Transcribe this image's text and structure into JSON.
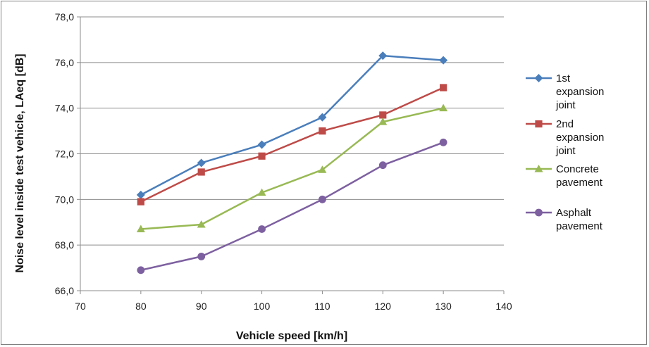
{
  "chart_data": {
    "type": "line",
    "xlabel": "Vehicle speed [km/h]",
    "ylabel": "Noise level inside test vehicle, LAeq [dB]",
    "xlim": [
      70,
      140
    ],
    "ylim": [
      66.0,
      78.0
    ],
    "x_ticks": [
      "70",
      "80",
      "90",
      "100",
      "110",
      "120",
      "130",
      "140"
    ],
    "y_ticks": [
      "66,0",
      "68,0",
      "70,0",
      "72,0",
      "74,0",
      "76,0",
      "78,0"
    ],
    "grid": "horizontal",
    "legend_position": "right",
    "x": [
      80,
      90,
      100,
      110,
      120,
      130
    ],
    "series": [
      {
        "name_lines": [
          "1st",
          "expansion",
          "joint"
        ],
        "marker": "diamond",
        "color": "#4a7ebb",
        "values": [
          70.2,
          71.6,
          72.4,
          73.6,
          76.3,
          76.1
        ]
      },
      {
        "name_lines": [
          "2nd",
          "expansion",
          "joint"
        ],
        "marker": "square",
        "color": "#be4b48",
        "values": [
          69.9,
          71.2,
          71.9,
          73.0,
          73.7,
          74.9
        ]
      },
      {
        "name_lines": [
          "Concrete",
          "pavement"
        ],
        "marker": "triangle",
        "color": "#98b954",
        "values": [
          68.7,
          68.9,
          70.3,
          71.3,
          73.4,
          74.0
        ]
      },
      {
        "name_lines": [
          "Asphalt",
          "pavement"
        ],
        "marker": "circle",
        "color": "#7d60a0",
        "values": [
          66.9,
          67.5,
          68.7,
          70.0,
          71.5,
          72.5
        ]
      }
    ]
  }
}
